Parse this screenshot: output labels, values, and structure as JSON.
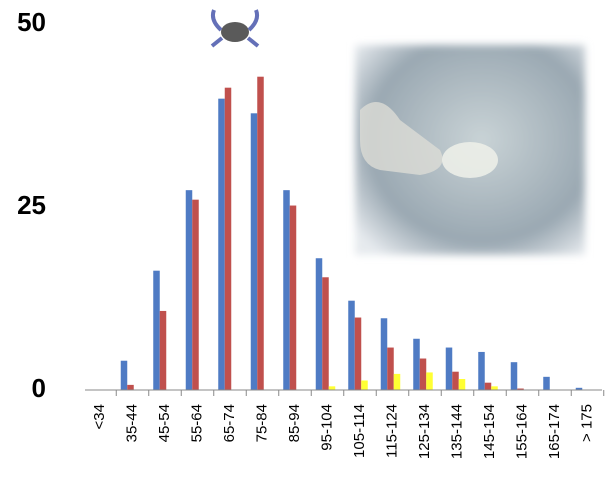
{
  "chart_data": {
    "type": "bar",
    "categories": [
      "<34",
      "35-44",
      "45-54",
      "55-64",
      "65-74",
      "75-84",
      "85-94",
      "95-104",
      "105-114",
      "115-124",
      "125-134",
      "135-144",
      "145-154",
      "155-164",
      "165-174",
      "> 175"
    ],
    "series": [
      {
        "color": "#4f7bc4",
        "values": [
          0,
          4,
          16.3,
          27.3,
          39.8,
          37.8,
          27.3,
          18,
          12.2,
          9.8,
          7,
          5.8,
          5.2,
          3.8,
          1.8,
          0.3
        ]
      },
      {
        "color": "#c0504d",
        "values": [
          0,
          0.7,
          10.8,
          26,
          41.3,
          42.8,
          25.2,
          15.4,
          9.9,
          5.8,
          4.3,
          2.5,
          1,
          0.2,
          0,
          0
        ]
      },
      {
        "color": "#ffff33",
        "values": [
          0,
          0,
          0,
          0,
          0,
          0,
          0,
          0.5,
          1.3,
          2.2,
          2.4,
          1.5,
          0.5,
          0,
          0,
          0
        ]
      }
    ],
    "ylim": [
      0,
      50
    ],
    "yticks": [
      0,
      25,
      50
    ],
    "grid": false
  }
}
